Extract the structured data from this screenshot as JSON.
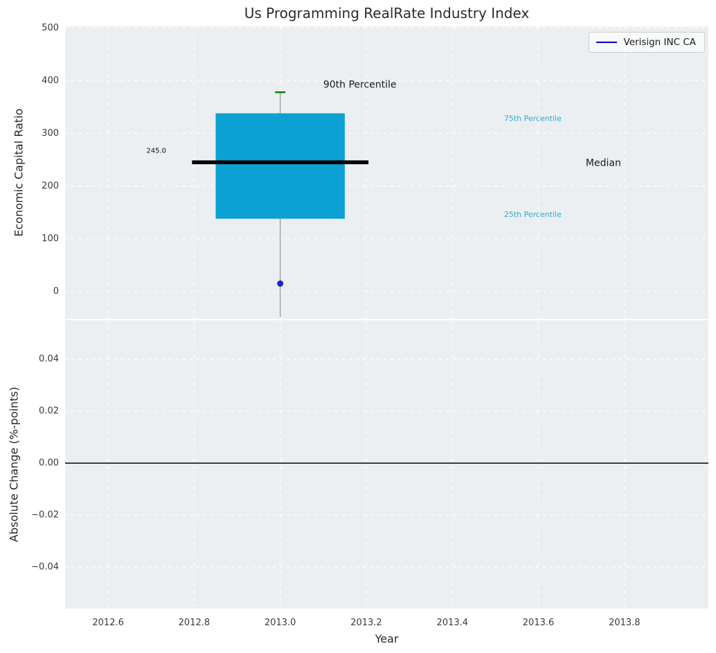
{
  "chart_data": {
    "type": "box",
    "title": "Us Programming RealRate Industry Index",
    "xlabel": "Year",
    "legend": {
      "label": "Verisign INC CA",
      "line_color": "#0000CD"
    },
    "x": {
      "lim": [
        2012.5,
        2013.995
      ],
      "ticks": [
        {
          "v": 2012.6,
          "label": "2012.6"
        },
        {
          "v": 2012.8,
          "label": "2012.8"
        },
        {
          "v": 2013.0,
          "label": "2013.0"
        },
        {
          "v": 2013.2,
          "label": "2013.2"
        },
        {
          "v": 2013.4,
          "label": "2013.4"
        },
        {
          "v": 2013.6,
          "label": "2013.6"
        },
        {
          "v": 2013.8,
          "label": "2013.8"
        }
      ]
    },
    "top": {
      "ylabel": "Economic Capital Ratio",
      "ylim": [
        -52,
        503
      ],
      "yticks": [
        {
          "v": 0,
          "label": "0"
        },
        {
          "v": 100,
          "label": "100"
        },
        {
          "v": 200,
          "label": "200"
        },
        {
          "v": 300,
          "label": "300"
        },
        {
          "v": 400,
          "label": "400"
        },
        {
          "v": 500,
          "label": "500"
        }
      ],
      "box": {
        "x": 2013.0,
        "box_width": 0.3,
        "median_width": 0.41,
        "cap_width": 0.024,
        "q25": 138,
        "median": 245,
        "q75": 338,
        "p90": 378,
        "whisker_low": -48,
        "point": 15
      },
      "annotations": [
        {
          "text": "90th Percentile",
          "x": 2013.1,
          "y": 392,
          "color": "#1a1a1a",
          "size": 14,
          "anchor": "start"
        },
        {
          "text": "75th Percentile",
          "x": 2013.52,
          "y": 328,
          "color": "#2CA9D2",
          "size": 11,
          "anchor": "start"
        },
        {
          "text": "Median",
          "x": 2013.71,
          "y": 243,
          "color": "#1a1a1a",
          "size": 14,
          "anchor": "start"
        },
        {
          "text": "25th Percentile",
          "x": 2013.52,
          "y": 146,
          "color": "#2CA9D2",
          "size": 11,
          "anchor": "start"
        },
        {
          "text": "245.0",
          "x": 2012.735,
          "y": 266,
          "color": "#111111",
          "size": 10,
          "anchor": "end"
        }
      ]
    },
    "bottom": {
      "ylabel": "Absolute Change (%-points)",
      "ylim": [
        -0.056,
        0.055
      ],
      "zero_line": 0.0,
      "yticks": [
        {
          "v": 0.04,
          "label": "0.04"
        },
        {
          "v": 0.02,
          "label": "0.02"
        },
        {
          "v": 0.0,
          "label": "0.00"
        },
        {
          "v": -0.02,
          "label": "−0.02"
        },
        {
          "v": -0.04,
          "label": "−0.04"
        }
      ]
    },
    "colors": {
      "box_fill": "#0BA1D3",
      "median_line": "#000000",
      "cap": "#008000",
      "whisker": "#7f7f7f",
      "point": "#2222CC",
      "axes_bg": "#ECEFF1",
      "grid": "#FFFFFF",
      "tick_text": "#3a3a3a",
      "zero_line": "#000000"
    }
  }
}
